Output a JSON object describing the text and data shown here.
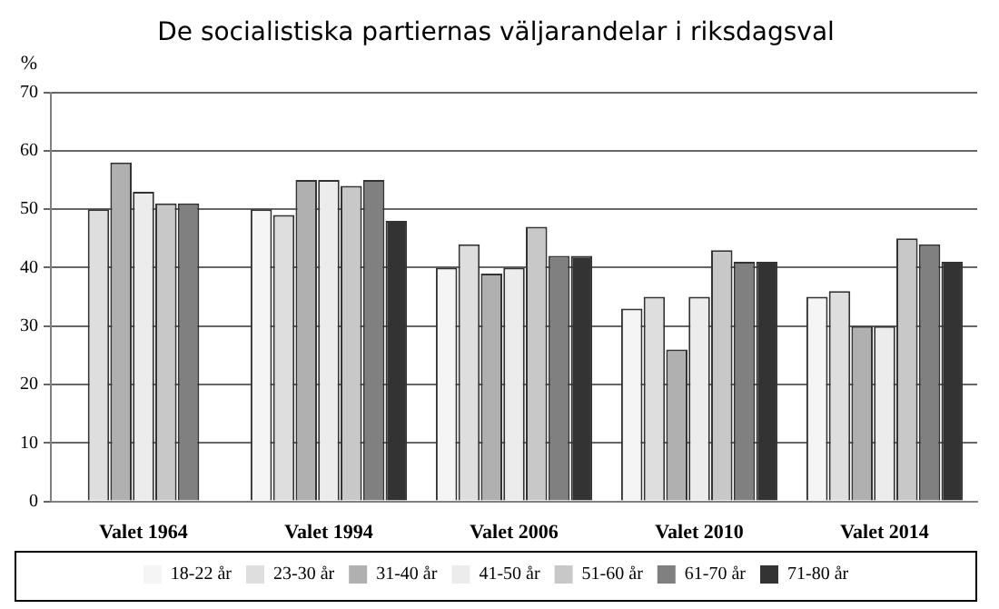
{
  "chart_data": {
    "type": "bar",
    "title": "De socialistiska partiernas väljarandelar i riksdagsval",
    "ylabel": "%",
    "categories": [
      "Valet 1964",
      "Valet 1994",
      "Valet 2006",
      "Valet 2010",
      "Valet 2014"
    ],
    "series": [
      {
        "name": "18-22 år",
        "color": "#f5f5f5",
        "values": [
          null,
          50,
          40,
          33,
          35
        ]
      },
      {
        "name": "23-30 år",
        "color": "#dedede",
        "values": [
          50,
          49,
          44,
          35,
          36
        ]
      },
      {
        "name": "31-40 år",
        "color": "#b0b0b0",
        "values": [
          58,
          55,
          39,
          26,
          30
        ]
      },
      {
        "name": "41-50 år",
        "color": "#ececec",
        "values": [
          53,
          55,
          40,
          35,
          30
        ]
      },
      {
        "name": "51-60 år",
        "color": "#c8c8c8",
        "values": [
          51,
          54,
          47,
          43,
          45
        ]
      },
      {
        "name": "61-70 år",
        "color": "#808080",
        "values": [
          51,
          55,
          42,
          41,
          44
        ]
      },
      {
        "name": "71-80 år",
        "color": "#333333",
        "values": [
          null,
          48,
          42,
          41,
          41
        ]
      }
    ],
    "ylim": [
      0,
      70
    ],
    "yticks": [
      0,
      10,
      20,
      30,
      40,
      50,
      60,
      70
    ],
    "grid": "y",
    "legend": "bottom"
  }
}
